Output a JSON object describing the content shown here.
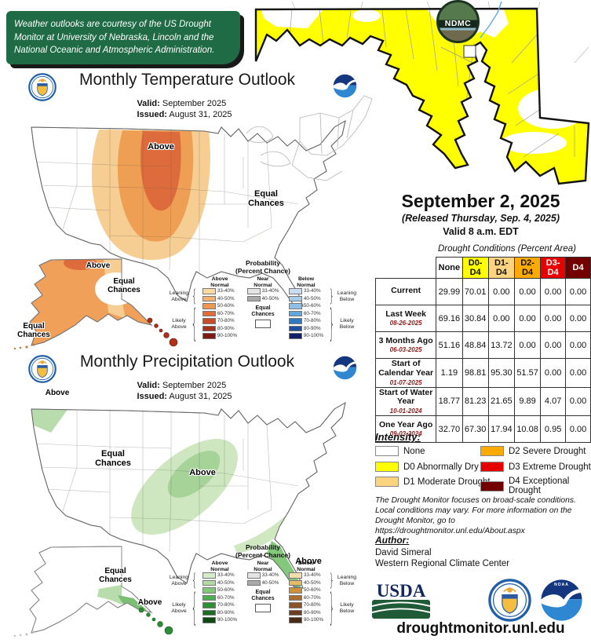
{
  "attribution": {
    "text": "Weather outlooks are courtesy of the US Drought Monitor at University of Nebraska, Lincoln and the National Oceanic and Atmospheric Administration."
  },
  "outlooks": {
    "temperature": {
      "title": "Monthly Temperature Outlook",
      "valid_label": "Valid:",
      "valid_value": "September 2025",
      "issued_label": "Issued:",
      "issued_value": "August 31, 2025",
      "map_labels": {
        "above": "Above",
        "equal_chances": "Equal Chances",
        "alaska_above": "Above",
        "alaska_equal_chances": "Equal Chances",
        "offshore_equal_chances": "Equal Chances"
      },
      "legend": {
        "title_line1": "Probability",
        "title_line2": "(Percent Chance)",
        "col_above": "Above Normal",
        "col_near": "Near Normal",
        "col_below": "Below Normal",
        "pcts": [
          "33-40%",
          "40-50%",
          "50-60%",
          "60-70%",
          "70-80%",
          "80-90%",
          "90-100%"
        ],
        "near_pcts": [
          "33-40%",
          "40-50%"
        ],
        "equal_chances": "Equal Chances",
        "leaning_above": "Leaning Above",
        "likely_above": "Likely Above",
        "leaning_below": "Leaning Below",
        "likely_below": "Likely Below",
        "above_colors": [
          "#FCD9A0",
          "#F7B272",
          "#F2984E",
          "#E36B35",
          "#C94C28",
          "#A6321C",
          "#7E1A10"
        ],
        "near_colors": [
          "#E4E4E4",
          "#A9A9A9"
        ],
        "below_colors": [
          "#C8DDF0",
          "#A9CBEA",
          "#8FBFE8",
          "#5FA8DC",
          "#2F79C2",
          "#1E4FA0",
          "#12206B"
        ]
      }
    },
    "precipitation": {
      "title": "Monthly Precipitation Outlook",
      "valid_label": "Valid:",
      "valid_value": "September 2025",
      "issued_label": "Issued:",
      "issued_value": "August 31, 2025",
      "map_labels": {
        "pnw_above": "Above",
        "equal_chances": "Equal Chances",
        "central_above": "Above",
        "florida_above": "Above",
        "alaska_equal_chances": "Equal Chances",
        "alaska_above": "Above"
      },
      "legend": {
        "title_line1": "Probability",
        "title_line2": "(Percent Chance)",
        "col_above": "Above Normal",
        "col_near": "Near Normal",
        "col_below": "Below Normal",
        "pcts": [
          "33-40%",
          "40-50%",
          "50-60%",
          "60-70%",
          "70-80%",
          "80-90%",
          "90-100%"
        ],
        "near_pcts": [
          "33-40%",
          "40-50%"
        ],
        "equal_chances": "Equal Chances",
        "leaning_above": "Leaning Above",
        "likely_above": "Likely Above",
        "leaning_below": "Leaning Below",
        "likely_below": "Likely Below",
        "above_colors": [
          "#D7EACA",
          "#B2DAA4",
          "#83C878",
          "#4BAE4F",
          "#2F8F37",
          "#1B6E23",
          "#0C4A12"
        ],
        "near_colors": [
          "#E4E4E4",
          "#A9A9A9"
        ],
        "below_colors": [
          "#F2DEA8",
          "#E4BC62",
          "#CE9038",
          "#AC6E2C",
          "#8C5326",
          "#6C3D1E",
          "#492A14"
        ]
      }
    }
  },
  "drought_monitor": {
    "state_fill_color": "#FFFF00",
    "date_title": "September 2, 2025",
    "released_line": "(Released Thursday, Sep. 4, 2025)",
    "valid_line": "Valid 8 a.m. EDT",
    "table_title": "Drought Conditions (Percent Area)",
    "columns": [
      {
        "label": "None",
        "color": "#FFFFFF"
      },
      {
        "label": "D0-D4",
        "color": "#FFFF00"
      },
      {
        "label": "D1-D4",
        "color": "#FCD37F"
      },
      {
        "label": "D2-D4",
        "color": "#FFAA00"
      },
      {
        "label": "D3-D4",
        "color": "#E60000"
      },
      {
        "label": "D4",
        "color": "#730000"
      }
    ],
    "rows": [
      {
        "label": "Current",
        "date": "",
        "values": [
          "29.99",
          "70.01",
          "0.00",
          "0.00",
          "0.00",
          "0.00"
        ]
      },
      {
        "label": "Last Week",
        "date": "08-26-2025",
        "values": [
          "69.16",
          "30.84",
          "0.00",
          "0.00",
          "0.00",
          "0.00"
        ]
      },
      {
        "label": "3 Months Ago",
        "date": "06-03-2025",
        "values": [
          "51.16",
          "48.84",
          "13.72",
          "0.00",
          "0.00",
          "0.00"
        ]
      },
      {
        "label": "Start of Calendar Year",
        "date": "01-07-2025",
        "values": [
          "1.19",
          "98.81",
          "95.30",
          "51.57",
          "0.00",
          "0.00"
        ]
      },
      {
        "label": "Start of Water Year",
        "date": "10-01-2024",
        "values": [
          "18.77",
          "81.23",
          "21.65",
          "9.89",
          "4.07",
          "0.00"
        ]
      },
      {
        "label": "One Year Ago",
        "date": "09-03-2024",
        "values": [
          "32.70",
          "67.30",
          "17.94",
          "10.08",
          "0.95",
          "0.00"
        ]
      }
    ],
    "intensity": {
      "title": "Intensity:",
      "items": [
        {
          "label": "None",
          "color": "#FFFFFF"
        },
        {
          "label": "D0 Abnormally Dry",
          "color": "#FFFF00"
        },
        {
          "label": "D1 Moderate Drought",
          "color": "#FCD37F"
        },
        {
          "label": "D2 Severe Drought",
          "color": "#FFAA00"
        },
        {
          "label": "D3 Extreme Drought",
          "color": "#E60000"
        },
        {
          "label": "D4 Exceptional Drought",
          "color": "#730000"
        }
      ]
    },
    "disclaimer": "The Drought Monitor focuses on broad-scale conditions. Local conditions may vary. For more information on the Drought Monitor, go to https://droughtmonitor.unl.edu/About.aspx",
    "author": {
      "label": "Author:",
      "name": "David Simeral",
      "org": "Western Regional Climate Center"
    },
    "website": "droughtmonitor.unl.edu",
    "logos": {
      "usda": "USDA",
      "ndmc": "NDMC",
      "noaa": "NOAA"
    }
  }
}
